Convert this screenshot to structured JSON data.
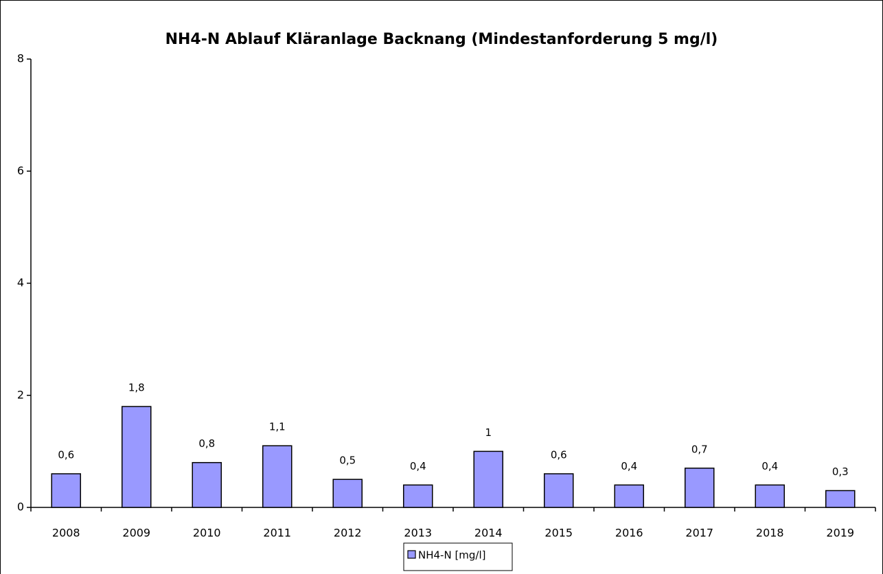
{
  "chart_data": {
    "type": "bar",
    "title": "NH4-N Ablauf Kläranlage Backnang (Mindestanforderung 5 mg/l)",
    "categories": [
      "2008",
      "2009",
      "2010",
      "2011",
      "2012",
      "2013",
      "2014",
      "2015",
      "2016",
      "2017",
      "2018",
      "2019"
    ],
    "series": [
      {
        "name": "NH4-N [mg/l]",
        "color": "#9999ff",
        "values": [
          0.6,
          1.8,
          0.8,
          1.1,
          0.5,
          0.4,
          1,
          0.6,
          0.4,
          0.7,
          0.4,
          0.3
        ],
        "value_labels": [
          "0,6",
          "1,8",
          "0,8",
          "1,1",
          "0,5",
          "0,4",
          "1",
          "0,6",
          "0,4",
          "0,7",
          "0,4",
          "0,3"
        ]
      }
    ],
    "ylim": [
      0,
      8
    ],
    "yticks": [
      0,
      2,
      4,
      6,
      8
    ],
    "grid": false,
    "legend": "bottom"
  }
}
